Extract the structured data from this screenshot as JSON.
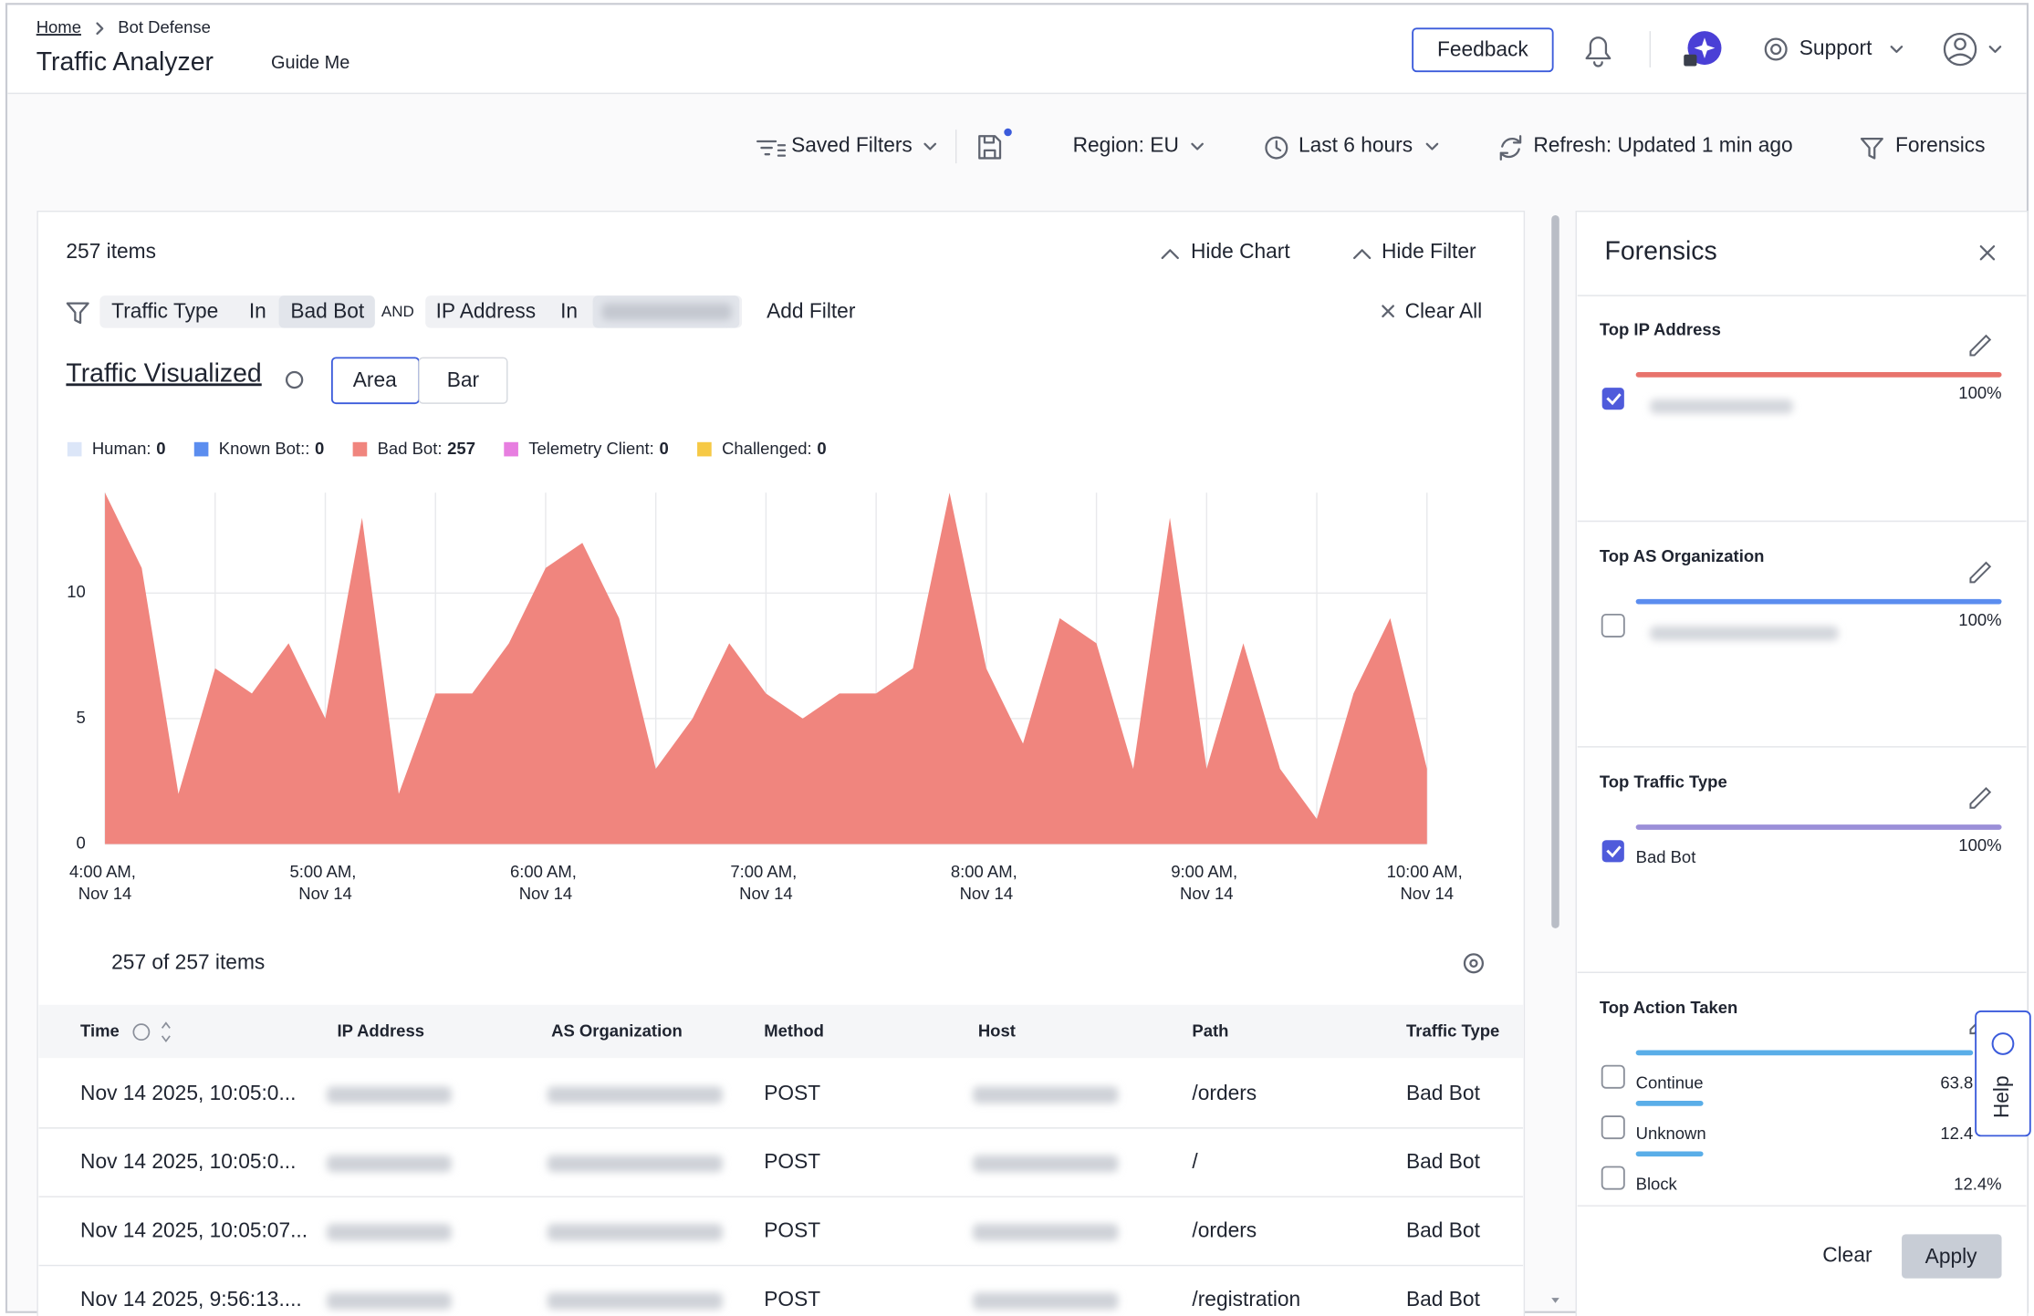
{
  "breadcrumb": [
    "Home",
    "Bot Defense"
  ],
  "header": {
    "title": "Traffic Analyzer",
    "guide": "Guide Me",
    "feedback": "Feedback",
    "support": "Support"
  },
  "toolbar": {
    "saved_filters": "Saved Filters",
    "region": "Region: EU",
    "time": "Last 6 hours",
    "refresh": "Refresh: Updated 1 min ago",
    "forensics": "Forensics"
  },
  "panel": {
    "items": "257 items",
    "hide_chart": "Hide Chart",
    "hide_filter": "Hide Filter",
    "filters": [
      {
        "field": "Traffic Type",
        "op": "In",
        "value": "Bad Bot"
      },
      {
        "field": "IP Address",
        "op": "In"
      }
    ],
    "and": "AND",
    "add_filter": "Add Filter",
    "clear_all": "Clear All",
    "viz_title": "Traffic Visualized",
    "toggle": [
      "Area",
      "Bar"
    ]
  },
  "chart_data": {
    "type": "area",
    "legend": [
      {
        "label": "Human:",
        "count": 0,
        "color": "#dce6f8"
      },
      {
        "label": "Known Bot::",
        "count": 0,
        "color": "#5b8def"
      },
      {
        "label": "Bad Bot:",
        "count": 257,
        "color": "#f0857e"
      },
      {
        "label": "Telemetry Client:",
        "count": 0,
        "color": "#e77ee0"
      },
      {
        "label": "Challenged:",
        "count": 0,
        "color": "#f6c945"
      }
    ],
    "categories": [
      "4:00 AM, Nov 14",
      null,
      null,
      null,
      null,
      null,
      "5:00 AM, Nov 14",
      null,
      null,
      null,
      null,
      null,
      "6:00 AM, Nov 14",
      null,
      null,
      null,
      null,
      null,
      "7:00 AM, Nov 14",
      null,
      null,
      null,
      null,
      null,
      "8:00 AM, Nov 14",
      null,
      null,
      null,
      null,
      null,
      "9:00 AM, Nov 14",
      null,
      null,
      null,
      null,
      null,
      "10:00 AM, Nov 14"
    ],
    "values": [
      14,
      11,
      2,
      7,
      6,
      8,
      5,
      13,
      2,
      6,
      6,
      8,
      11,
      12,
      9,
      3,
      5,
      8,
      6,
      5,
      6,
      6,
      7,
      14,
      7,
      4,
      9,
      8,
      3,
      13,
      3,
      8,
      3,
      1,
      6,
      9,
      3
    ],
    "color": "#f0857e",
    "ylim": [
      0,
      14
    ],
    "yticks": [
      0,
      5,
      10
    ],
    "grid": true
  },
  "table": {
    "count": "257 of 257 items",
    "columns": [
      "Time",
      "IP Address",
      "AS Organization",
      "Method",
      "Host",
      "Path",
      "Traffic Type"
    ],
    "rows": [
      {
        "time": "Nov 14 2025, 10:05:0...",
        "method": "POST",
        "path": "/orders",
        "type": "Bad Bot"
      },
      {
        "time": "Nov 14 2025, 10:05:0...",
        "method": "POST",
        "path": "/",
        "type": "Bad Bot"
      },
      {
        "time": "Nov 14 2025, 10:05:07...",
        "method": "POST",
        "path": "/orders",
        "type": "Bad Bot"
      },
      {
        "time": "Nov 14 2025, 9:56:13....",
        "method": "POST",
        "path": "/registration",
        "type": "Bad Bot"
      }
    ]
  },
  "forensics": {
    "title": "Forensics",
    "sections": [
      {
        "title": "Top IP Address",
        "color": "#e8736c",
        "items": [
          {
            "checked": true,
            "percent": "100%"
          }
        ]
      },
      {
        "title": "Top AS Organization",
        "color": "#5b8def",
        "items": [
          {
            "checked": false,
            "percent": "100%"
          }
        ]
      },
      {
        "title": "Top Traffic Type",
        "color": "#9b8fd8",
        "items": [
          {
            "checked": true,
            "label": "Bad Bot",
            "percent": "100%"
          }
        ]
      },
      {
        "title": "Top Action Taken",
        "color": "#5aaee8",
        "items": [
          {
            "checked": false,
            "label": "Continue",
            "percent": "63.8"
          },
          {
            "checked": false,
            "label": "Unknown",
            "percent": "12.4"
          },
          {
            "checked": false,
            "label": "Block",
            "percent": "12.4%"
          }
        ]
      }
    ],
    "clear": "Clear",
    "apply": "Apply",
    "help": "Help"
  }
}
